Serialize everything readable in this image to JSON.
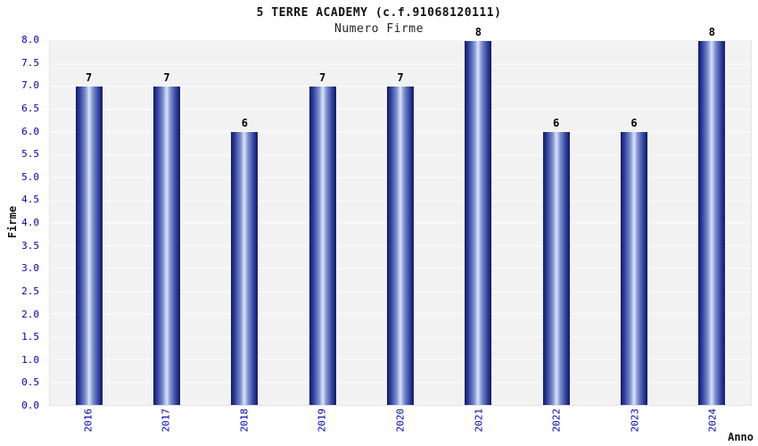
{
  "chart_data": {
    "type": "bar",
    "title": "5 TERRE ACADEMY (c.f.91068120111)",
    "subtitle": "Numero Firme",
    "categories": [
      "2016",
      "2017",
      "2018",
      "2019",
      "2020",
      "2021",
      "2022",
      "2023",
      "2024"
    ],
    "values": [
      7,
      7,
      6,
      7,
      7,
      8,
      6,
      6,
      8
    ],
    "xlabel": "Anno",
    "ylabel": "Firme",
    "ylim": [
      0,
      8
    ],
    "ytick_step": 0.5,
    "ytick_format_decimals": 1,
    "grid": true,
    "legend": "none",
    "colors": {
      "bar_edge": "#141b5e",
      "bar_center": "#dde3f6",
      "tick_label": "#0000bb",
      "value_label": "#000000",
      "plot_background": "#f2f2f2",
      "gridline": "#ffffff",
      "title_text": "#111111"
    }
  }
}
